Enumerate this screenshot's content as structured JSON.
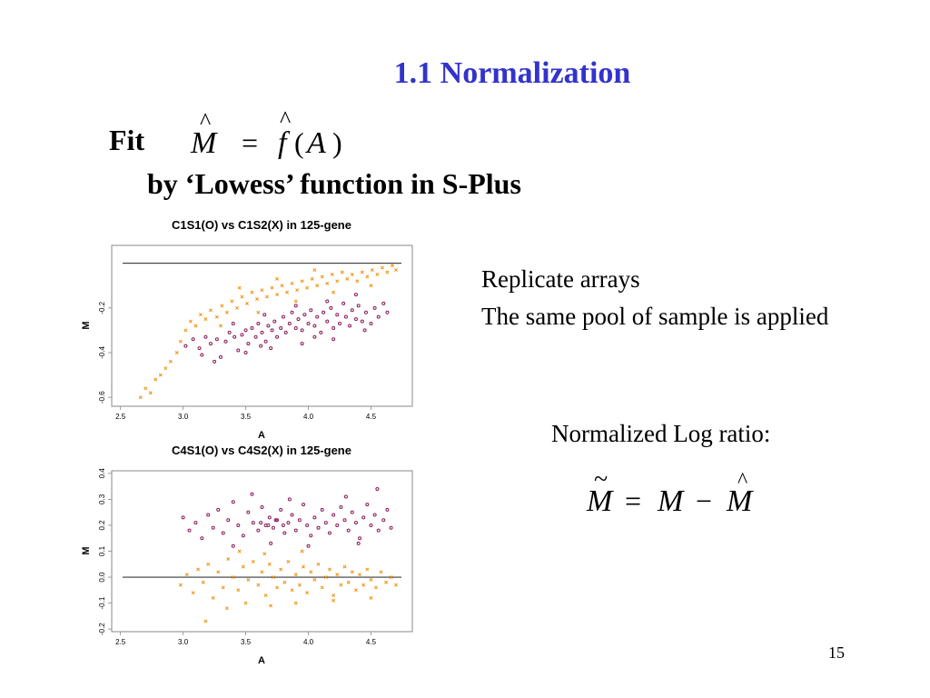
{
  "slide": {
    "title": "1.1 Normalization",
    "fit_label": "Fit",
    "subtitle": "by ‘Lowess’ function in S-Plus",
    "note_line1": "Replicate arrays",
    "note_line2": "The same pool of sample is applied",
    "note_line3": "Normalized Log ratio:",
    "page_number": "15",
    "formula1": {
      "lhs": "M",
      "eq": "=",
      "fn": "f",
      "open": "(",
      "arg": "A",
      "close": ")"
    },
    "formula2": {
      "lhs": "M",
      "eq": "=",
      "m": "M",
      "minus": "−",
      "mhat": "M"
    }
  },
  "colors": {
    "title": "#3333cc",
    "series_o": "#8b1a5a",
    "series_x": "#f0900e"
  },
  "chart_data": [
    {
      "type": "scatter",
      "title": "C1S1(O) vs C1S2(X) in 125-gene",
      "xlabel": "A",
      "ylabel": "M",
      "xlim": [
        2.43,
        4.83
      ],
      "ylim": [
        -0.64,
        0.08
      ],
      "xticks": [
        "2.5",
        "3.0",
        "3.5",
        "4.0",
        "4.5"
      ],
      "xtick_values": [
        2.5,
        3.0,
        3.5,
        4.0,
        4.5
      ],
      "yticks": [
        "-0.2",
        "-0.4",
        "-0.6"
      ],
      "ytick_values": [
        -0.2,
        -0.4,
        -0.6
      ],
      "reference_line_y": 0.0,
      "series": [
        {
          "marker": "o",
          "color": "#8b1a5a",
          "points": [
            [
              3.02,
              -0.37
            ],
            [
              3.08,
              -0.34
            ],
            [
              3.13,
              -0.38
            ],
            [
              3.18,
              -0.33
            ],
            [
              3.22,
              -0.36
            ],
            [
              3.27,
              -0.34
            ],
            [
              3.3,
              -0.42
            ],
            [
              3.34,
              -0.35
            ],
            [
              3.37,
              -0.31
            ],
            [
              3.41,
              -0.33
            ],
            [
              3.44,
              -0.39
            ],
            [
              3.47,
              -0.32
            ],
            [
              3.5,
              -0.3
            ],
            [
              3.52,
              -0.36
            ],
            [
              3.55,
              -0.29
            ],
            [
              3.58,
              -0.33
            ],
            [
              3.6,
              -0.27
            ],
            [
              3.63,
              -0.31
            ],
            [
              3.66,
              -0.35
            ],
            [
              3.68,
              -0.28
            ],
            [
              3.71,
              -0.3
            ],
            [
              3.73,
              -0.26
            ],
            [
              3.75,
              -0.33
            ],
            [
              3.78,
              -0.29
            ],
            [
              3.8,
              -0.24
            ],
            [
              3.82,
              -0.31
            ],
            [
              3.85,
              -0.27
            ],
            [
              3.87,
              -0.22
            ],
            [
              3.9,
              -0.29
            ],
            [
              3.92,
              -0.25
            ],
            [
              3.95,
              -0.3
            ],
            [
              3.97,
              -0.23
            ],
            [
              4.0,
              -0.27
            ],
            [
              4.02,
              -0.21
            ],
            [
              4.05,
              -0.28
            ],
            [
              4.07,
              -0.24
            ],
            [
              4.1,
              -0.31
            ],
            [
              4.12,
              -0.22
            ],
            [
              4.15,
              -0.26
            ],
            [
              4.18,
              -0.2
            ],
            [
              4.2,
              -0.29
            ],
            [
              4.23,
              -0.23
            ],
            [
              4.25,
              -0.27
            ],
            [
              4.28,
              -0.18
            ],
            [
              4.3,
              -0.24
            ],
            [
              4.33,
              -0.28
            ],
            [
              4.35,
              -0.21
            ],
            [
              4.38,
              -0.25
            ],
            [
              4.4,
              -0.19
            ],
            [
              4.43,
              -0.26
            ],
            [
              4.46,
              -0.22
            ],
            [
              4.5,
              -0.27
            ],
            [
              4.53,
              -0.2
            ],
            [
              4.56,
              -0.24
            ],
            [
              4.6,
              -0.18
            ],
            [
              4.63,
              -0.22
            ],
            [
              3.25,
              -0.44
            ],
            [
              3.5,
              -0.4
            ],
            [
              3.7,
              -0.38
            ],
            [
              3.95,
              -0.36
            ],
            [
              4.2,
              -0.34
            ],
            [
              4.45,
              -0.3
            ],
            [
              3.4,
              -0.27
            ],
            [
              3.65,
              -0.23
            ],
            [
              3.9,
              -0.19
            ],
            [
              4.15,
              -0.17
            ],
            [
              4.38,
              -0.14
            ],
            [
              3.15,
              -0.41
            ],
            [
              3.62,
              -0.37
            ],
            [
              4.05,
              -0.33
            ]
          ]
        },
        {
          "marker": "x",
          "color": "#f0900e",
          "points": [
            [
              2.66,
              -0.6
            ],
            [
              2.7,
              -0.56
            ],
            [
              2.74,
              -0.58
            ],
            [
              2.78,
              -0.52
            ],
            [
              2.82,
              -0.5
            ],
            [
              2.86,
              -0.47
            ],
            [
              2.9,
              -0.44
            ],
            [
              2.95,
              -0.4
            ],
            [
              2.98,
              -0.35
            ],
            [
              3.02,
              -0.3
            ],
            [
              3.06,
              -0.26
            ],
            [
              3.1,
              -0.28
            ],
            [
              3.14,
              -0.23
            ],
            [
              3.18,
              -0.25
            ],
            [
              3.22,
              -0.21
            ],
            [
              3.27,
              -0.24
            ],
            [
              3.31,
              -0.19
            ],
            [
              3.35,
              -0.22
            ],
            [
              3.39,
              -0.17
            ],
            [
              3.43,
              -0.2
            ],
            [
              3.47,
              -0.15
            ],
            [
              3.51,
              -0.18
            ],
            [
              3.55,
              -0.13
            ],
            [
              3.59,
              -0.16
            ],
            [
              3.63,
              -0.12
            ],
            [
              3.67,
              -0.15
            ],
            [
              3.71,
              -0.11
            ],
            [
              3.75,
              -0.14
            ],
            [
              3.79,
              -0.1
            ],
            [
              3.83,
              -0.13
            ],
            [
              3.87,
              -0.09
            ],
            [
              3.91,
              -0.12
            ],
            [
              3.95,
              -0.08
            ],
            [
              3.99,
              -0.11
            ],
            [
              4.03,
              -0.07
            ],
            [
              4.07,
              -0.1
            ],
            [
              4.11,
              -0.06
            ],
            [
              4.15,
              -0.09
            ],
            [
              4.19,
              -0.05
            ],
            [
              4.23,
              -0.08
            ],
            [
              4.27,
              -0.04
            ],
            [
              4.31,
              -0.07
            ],
            [
              4.35,
              -0.05
            ],
            [
              4.39,
              -0.08
            ],
            [
              4.43,
              -0.04
            ],
            [
              4.47,
              -0.06
            ],
            [
              4.51,
              -0.03
            ],
            [
              4.55,
              -0.05
            ],
            [
              4.59,
              -0.02
            ],
            [
              4.63,
              -0.04
            ],
            [
              4.67,
              -0.01
            ],
            [
              4.7,
              -0.03
            ],
            [
              3.3,
              -0.28
            ],
            [
              3.6,
              -0.22
            ],
            [
              3.9,
              -0.17
            ],
            [
              4.2,
              -0.13
            ],
            [
              4.5,
              -0.1
            ],
            [
              3.45,
              -0.11
            ],
            [
              3.75,
              -0.07
            ],
            [
              4.05,
              -0.03
            ]
          ]
        }
      ]
    },
    {
      "type": "scatter",
      "title": "C4S1(O) vs C4S2(X) in 125-gene",
      "xlabel": "A",
      "ylabel": "M",
      "xlim": [
        2.43,
        4.83
      ],
      "ylim": [
        -0.21,
        0.41
      ],
      "xticks": [
        "2.5",
        "3.0",
        "3.5",
        "4.0",
        "4.5"
      ],
      "xtick_values": [
        2.5,
        3.0,
        3.5,
        4.0,
        4.5
      ],
      "yticks": [
        "0.4",
        "0.3",
        "0.2",
        "0.1",
        "0.0",
        "-0.1",
        "-0.2"
      ],
      "ytick_values": [
        0.4,
        0.3,
        0.2,
        0.1,
        0.0,
        -0.1,
        -0.2
      ],
      "reference_line_y": 0.0,
      "series": [
        {
          "marker": "o",
          "color": "#8b1a5a",
          "points": [
            [
              3.0,
              0.23
            ],
            [
              3.05,
              0.18
            ],
            [
              3.1,
              0.21
            ],
            [
              3.15,
              0.15
            ],
            [
              3.2,
              0.24
            ],
            [
              3.24,
              0.19
            ],
            [
              3.28,
              0.26
            ],
            [
              3.32,
              0.17
            ],
            [
              3.36,
              0.22
            ],
            [
              3.4,
              0.29
            ],
            [
              3.44,
              0.2
            ],
            [
              3.48,
              0.16
            ],
            [
              3.52,
              0.25
            ],
            [
              3.56,
              0.21
            ],
            [
              3.6,
              0.18
            ],
            [
              3.63,
              0.27
            ],
            [
              3.66,
              0.2
            ],
            [
              3.69,
              0.23
            ],
            [
              3.72,
              0.19
            ],
            [
              3.75,
              0.22
            ],
            [
              3.78,
              0.26
            ],
            [
              3.81,
              0.17
            ],
            [
              3.84,
              0.21
            ],
            [
              3.87,
              0.24
            ],
            [
              3.9,
              0.18
            ],
            [
              3.93,
              0.22
            ],
            [
              3.96,
              0.28
            ],
            [
              3.99,
              0.2
            ],
            [
              4.02,
              0.16
            ],
            [
              4.05,
              0.23
            ],
            [
              4.08,
              0.19
            ],
            [
              4.11,
              0.26
            ],
            [
              4.14,
              0.21
            ],
            [
              4.17,
              0.17
            ],
            [
              4.2,
              0.24
            ],
            [
              4.23,
              0.2
            ],
            [
              4.26,
              0.27
            ],
            [
              4.29,
              0.22
            ],
            [
              4.32,
              0.18
            ],
            [
              4.35,
              0.25
            ],
            [
              4.38,
              0.21
            ],
            [
              4.41,
              0.15
            ],
            [
              4.44,
              0.23
            ],
            [
              4.47,
              0.28
            ],
            [
              4.5,
              0.2
            ],
            [
              4.53,
              0.24
            ],
            [
              4.56,
              0.18
            ],
            [
              4.6,
              0.22
            ],
            [
              4.63,
              0.26
            ],
            [
              4.66,
              0.19
            ],
            [
              3.55,
              0.32
            ],
            [
              3.85,
              0.3
            ],
            [
              4.3,
              0.31
            ],
            [
              4.55,
              0.34
            ],
            [
              3.4,
              0.12
            ],
            [
              3.7,
              0.13
            ],
            [
              4.0,
              0.12
            ],
            [
              4.4,
              0.13
            ],
            [
              3.62,
              0.21
            ],
            [
              3.68,
              0.2
            ],
            [
              3.74,
              0.22
            ],
            [
              3.8,
              0.2
            ]
          ]
        },
        {
          "marker": "x",
          "color": "#f0900e",
          "points": [
            [
              2.98,
              -0.03
            ],
            [
              3.03,
              0.01
            ],
            [
              3.08,
              -0.06
            ],
            [
              3.12,
              0.03
            ],
            [
              3.16,
              -0.02
            ],
            [
              3.2,
              0.05
            ],
            [
              3.24,
              -0.08
            ],
            [
              3.28,
              0.02
            ],
            [
              3.32,
              -0.04
            ],
            [
              3.36,
              0.07
            ],
            [
              3.4,
              0.0
            ],
            [
              3.44,
              -0.05
            ],
            [
              3.48,
              0.04
            ],
            [
              3.52,
              -0.01
            ],
            [
              3.56,
              0.06
            ],
            [
              3.6,
              -0.03
            ],
            [
              3.63,
              0.02
            ],
            [
              3.66,
              -0.07
            ],
            [
              3.69,
              0.05
            ],
            [
              3.72,
              0.0
            ],
            [
              3.75,
              -0.04
            ],
            [
              3.78,
              0.03
            ],
            [
              3.81,
              -0.02
            ],
            [
              3.84,
              0.06
            ],
            [
              3.87,
              -0.05
            ],
            [
              3.9,
              0.01
            ],
            [
              3.93,
              -0.03
            ],
            [
              3.96,
              0.04
            ],
            [
              3.99,
              -0.06
            ],
            [
              4.02,
              0.02
            ],
            [
              4.05,
              -0.01
            ],
            [
              4.08,
              0.05
            ],
            [
              4.11,
              -0.04
            ],
            [
              4.14,
              0.0
            ],
            [
              4.17,
              0.03
            ],
            [
              4.2,
              -0.07
            ],
            [
              4.23,
              0.01
            ],
            [
              4.26,
              -0.03
            ],
            [
              4.29,
              0.04
            ],
            [
              4.32,
              -0.02
            ],
            [
              4.35,
              0.02
            ],
            [
              4.38,
              -0.05
            ],
            [
              4.41,
              0.01
            ],
            [
              4.44,
              -0.03
            ],
            [
              4.47,
              0.03
            ],
            [
              4.5,
              -0.01
            ],
            [
              4.54,
              -0.04
            ],
            [
              4.58,
              0.02
            ],
            [
              4.62,
              -0.02
            ],
            [
              4.66,
              0.0
            ],
            [
              4.7,
              -0.03
            ],
            [
              3.18,
              -0.17
            ],
            [
              3.35,
              -0.12
            ],
            [
              3.5,
              -0.1
            ],
            [
              3.7,
              -0.11
            ],
            [
              3.9,
              -0.1
            ],
            [
              4.2,
              -0.09
            ],
            [
              4.5,
              -0.08
            ],
            [
              3.45,
              0.1
            ],
            [
              3.65,
              0.09
            ],
            [
              3.95,
              0.1
            ]
          ]
        }
      ]
    }
  ]
}
